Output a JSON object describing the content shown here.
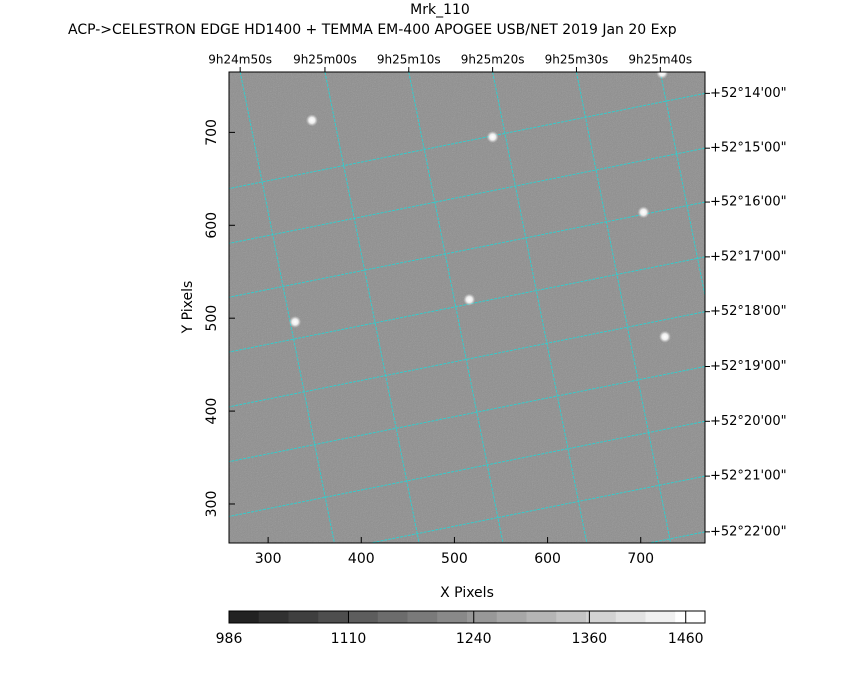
{
  "chart_data": {
    "type": "image",
    "title": "Mrk_110",
    "subtitle": "ACP->CELESTRON EDGE HD1400 + TEMMA EM-400 APOGEE USB/NET   2019 Jan 20    Exp",
    "xlabel": "X Pixels",
    "ylabel": "Y Pixels",
    "xlim": [
      258,
      769
    ],
    "ylim": [
      258,
      765
    ],
    "xticks": [
      300,
      400,
      500,
      600,
      700
    ],
    "yticks": [
      300,
      400,
      500,
      600,
      700
    ],
    "top_ticks": [
      {
        "value": 270,
        "label": "9h24m50s"
      },
      {
        "value": 361,
        "label": "9h25m00s"
      },
      {
        "value": 451,
        "label": "9h25m10s"
      },
      {
        "value": 541,
        "label": "9h25m20s"
      },
      {
        "value": 631,
        "label": "9h25m30s"
      },
      {
        "value": 721,
        "label": "9h25m40s"
      }
    ],
    "right_ticks": [
      {
        "value": 742,
        "label": "+52°14'00\""
      },
      {
        "value": 683,
        "label": "+52°15'00\""
      },
      {
        "value": 625,
        "label": "+52°16'00\""
      },
      {
        "value": 566,
        "label": "+52°17'00\""
      },
      {
        "value": 507,
        "label": "+52°18'00\""
      },
      {
        "value": 448,
        "label": "+52°19'00\""
      },
      {
        "value": 389,
        "label": "+52°20'00\""
      },
      {
        "value": 330,
        "label": "+52°21'00\""
      },
      {
        "value": 270,
        "label": "+52°22'00\""
      }
    ],
    "sources": {
      "x": [
        347,
        541,
        703,
        329,
        516,
        726,
        723
      ],
      "y": [
        713,
        695,
        614,
        496,
        520,
        480,
        764
      ]
    },
    "colorbar": {
      "clim": [
        986,
        1480
      ],
      "ticks": [
        986,
        1110,
        1240,
        1360,
        1460
      ]
    }
  }
}
